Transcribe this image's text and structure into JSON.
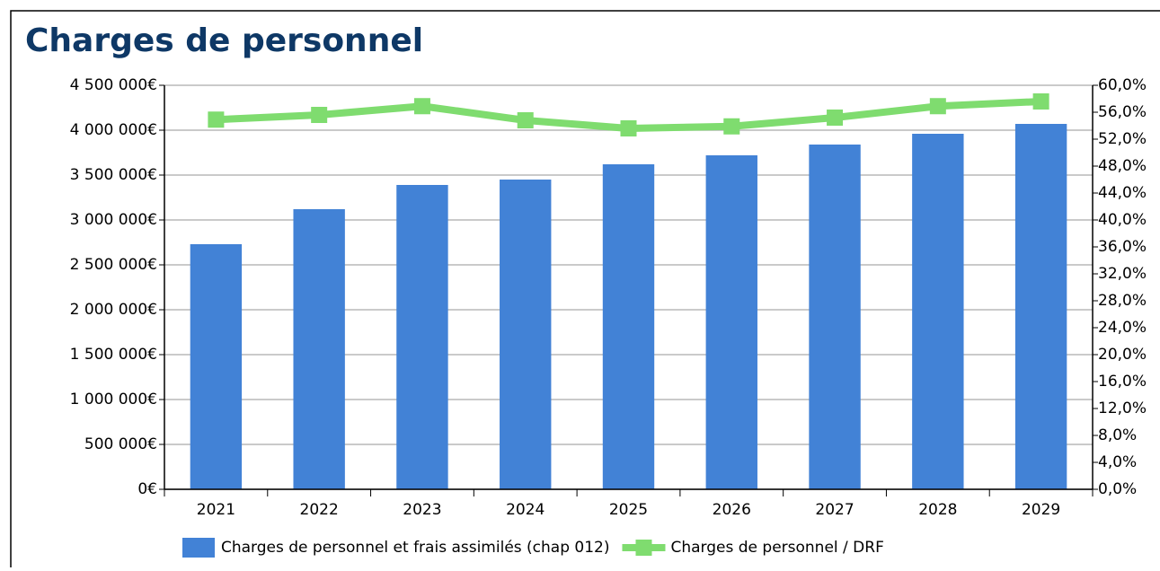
{
  "chart_data": {
    "type": "bar_line",
    "title": "Charges de personnel",
    "categories": [
      "2021",
      "2022",
      "2023",
      "2024",
      "2025",
      "2026",
      "2027",
      "2028",
      "2029"
    ],
    "series": [
      {
        "name": "Charges de personnel et frais assimilés (chap 012)",
        "type": "bar",
        "color": "#4282d6",
        "values": [
          2730000,
          3120000,
          3390000,
          3450000,
          3620000,
          3720000,
          3840000,
          3960000,
          4070000
        ]
      },
      {
        "name": "Charges de personnel / DRF",
        "type": "line",
        "axis": "y2",
        "color": "#7fdc6f",
        "values": [
          54.9,
          55.6,
          56.9,
          54.8,
          53.6,
          53.9,
          55.2,
          56.9,
          57.6
        ]
      }
    ],
    "ylim": [
      0,
      4500000
    ],
    "yticks": [
      {
        "value": 0,
        "label": "0€"
      },
      {
        "value": 500000,
        "label": "500 000€"
      },
      {
        "value": 1000000,
        "label": "1 000 000€"
      },
      {
        "value": 1500000,
        "label": "1 500 000€"
      },
      {
        "value": 2000000,
        "label": "2 000 000€"
      },
      {
        "value": 2500000,
        "label": "2 500 000€"
      },
      {
        "value": 3000000,
        "label": "3 000 000€"
      },
      {
        "value": 3500000,
        "label": "3 500 000€"
      },
      {
        "value": 4000000,
        "label": "4 000 000€"
      },
      {
        "value": 4500000,
        "label": "4 500 000€"
      }
    ],
    "y2lim": [
      0,
      60
    ],
    "y2ticks": [
      {
        "value": 0,
        "label": "0,0%"
      },
      {
        "value": 4,
        "label": "4,0%"
      },
      {
        "value": 8,
        "label": "8,0%"
      },
      {
        "value": 12,
        "label": "12,0%"
      },
      {
        "value": 16,
        "label": "16,0%"
      },
      {
        "value": 20,
        "label": "20,0%"
      },
      {
        "value": 24,
        "label": "24,0%"
      },
      {
        "value": 28,
        "label": "28,0%"
      },
      {
        "value": 32,
        "label": "32,0%"
      },
      {
        "value": 36,
        "label": "36,0%"
      },
      {
        "value": 40,
        "label": "40,0%"
      },
      {
        "value": 44,
        "label": "44,0%"
      },
      {
        "value": 48,
        "label": "48,0%"
      },
      {
        "value": 52,
        "label": "52,0%"
      },
      {
        "value": 56,
        "label": "56,0%"
      },
      {
        "value": 60,
        "label": "60,0%"
      }
    ],
    "grid": true,
    "legend": "bottom"
  }
}
